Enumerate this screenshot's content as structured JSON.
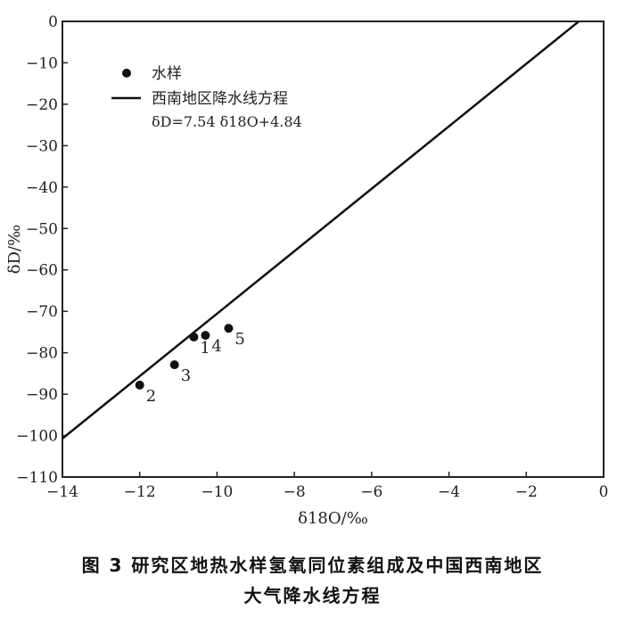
{
  "chart_data": {
    "type": "scatter",
    "xlabel": "δ18O/‰",
    "ylabel": "δD/‰",
    "xlim": [
      -14,
      0
    ],
    "ylim": [
      -110,
      0
    ],
    "xticks": [
      -14,
      -12,
      -10,
      -8,
      -6,
      -4,
      -2,
      0
    ],
    "yticks": [
      0,
      -10,
      -20,
      -30,
      -40,
      -50,
      -60,
      -70,
      -80,
      -90,
      -100,
      -110
    ],
    "grid": false,
    "legend": {
      "placement": "top-left",
      "entries": [
        "水样",
        "西南地区降水线方程"
      ],
      "equation": "δD=7.54 δ18O+4.84"
    },
    "series": [
      {
        "name": "水样",
        "type": "scatter",
        "points": [
          {
            "label": "1",
            "x": -10.6,
            "y": -76.2
          },
          {
            "label": "2",
            "x": -12.0,
            "y": -87.8
          },
          {
            "label": "3",
            "x": -11.1,
            "y": -82.9
          },
          {
            "label": "4",
            "x": -10.3,
            "y": -75.8
          },
          {
            "label": "5",
            "x": -9.7,
            "y": -74.1
          }
        ]
      },
      {
        "name": "西南地区降水线方程",
        "type": "line",
        "slope": 7.54,
        "intercept": 4.84
      }
    ]
  },
  "caption": {
    "line1": "图 3  研究区地热水样氢氧同位素组成及中国西南地区",
    "line2": "大气降水线方程"
  }
}
